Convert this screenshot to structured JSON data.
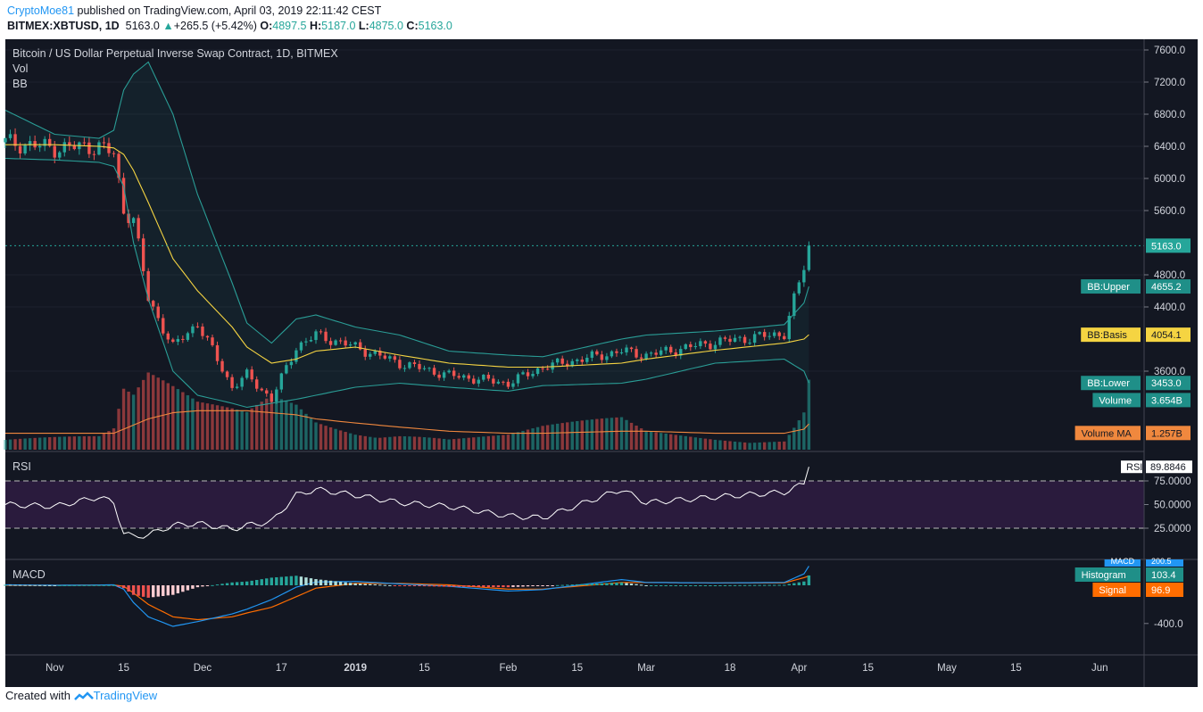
{
  "header": {
    "author": "CryptoMoe81",
    "published_text": "published on TradingView.com, April 03, 2019 22:11:42 CEST",
    "symbol": "BITMEX:XBTUSD, 1D",
    "last": "5163.0",
    "change": "+265.5 (+5.42%)",
    "o_label": "O:",
    "o": "4897.5",
    "h_label": "H:",
    "h": "5187.0",
    "l_label": "L:",
    "l": "4875.0",
    "c_label": "C:",
    "c": "5163.0"
  },
  "legend": {
    "title": "Bitcoin / US Dollar Perpetual Inverse Swap Contract, 1D, BITMEX",
    "vol": "Vol",
    "bb": "BB",
    "rsi": "RSI",
    "macd": "MACD"
  },
  "colors": {
    "background": "#131722",
    "up": "#26a69a",
    "down": "#ef5350",
    "bb_band": "#2a9d96",
    "bb_basis": "#f5d442",
    "volume_ma": "#f0883e",
    "rsi_line": "#ffffff",
    "rsi_zone": "#2a1b3d",
    "macd_line": "#2196f3",
    "signal_line": "#ff6d00"
  },
  "price_axis": {
    "ticks": [
      "7600.0",
      "7200.0",
      "6800.0",
      "6400.0",
      "6000.0",
      "5600.0",
      "4800.0",
      "4400.0",
      "3600.0"
    ],
    "badges": [
      {
        "label": "",
        "value": "5163.0",
        "price": 5163
      },
      {
        "label": "BB:Upper",
        "value": "4655.2",
        "price": 4655
      },
      {
        "label": "BB:Basis",
        "value": "4054.1",
        "price": 4054
      },
      {
        "label": "BB:Lower",
        "value": "3453.0",
        "price": 3453
      },
      {
        "label": "Volume",
        "value": "3.654B",
        "price": 3240
      },
      {
        "label": "Volume MA",
        "value": "1.257B",
        "price": 2830
      }
    ]
  },
  "rsi_axis": {
    "ticks": [
      "75.0000",
      "50.0000",
      "25.0000"
    ],
    "badge_label": "RSI",
    "badge_value": "89.8846"
  },
  "macd_axis": {
    "ticks": [
      "-400.0"
    ],
    "badges": [
      {
        "label": "MACD",
        "value": "200.5"
      },
      {
        "label": "Histogram",
        "value": "103.4"
      },
      {
        "label": "Signal",
        "value": "96.9"
      }
    ]
  },
  "time_axis": [
    "Nov",
    "15",
    "Dec",
    "17",
    "2019",
    "15",
    "Feb",
    "15",
    "Mar",
    "18",
    "Apr",
    "15",
    "May",
    "15",
    "Jun"
  ],
  "footer": {
    "prefix": "Created with",
    "brand": "TradingView"
  },
  "chart_data": {
    "type": "candlestick",
    "title": "Bitcoin / US Dollar Perpetual Inverse Swap Contract, 1D, BITMEX",
    "interval": "1D",
    "price_range": [
      3150,
      7700
    ],
    "x": [
      "2018-10-22",
      "2018-11-01",
      "2018-11-10",
      "2018-11-13",
      "2018-11-15",
      "2018-11-17",
      "2018-11-20",
      "2018-11-25",
      "2018-11-30",
      "2018-12-07",
      "2018-12-10",
      "2018-12-15",
      "2018-12-20",
      "2018-12-24",
      "2019-01-01",
      "2019-01-10",
      "2019-01-20",
      "2019-02-01",
      "2019-02-08",
      "2019-02-24",
      "2019-03-01",
      "2019-03-15",
      "2019-03-29",
      "2019-04-02",
      "2019-04-03"
    ],
    "close": [
      6450,
      6380,
      6400,
      6300,
      5600,
      5500,
      4500,
      3900,
      4200,
      3400,
      3550,
      3250,
      3900,
      4050,
      3900,
      3700,
      3550,
      3450,
      3650,
      3850,
      3800,
      3960,
      4070,
      4900,
      5163
    ],
    "bb_upper": [
      6850,
      6550,
      6500,
      6600,
      7100,
      7300,
      7450,
      6800,
      5800,
      4700,
      4200,
      3950,
      4250,
      4300,
      4150,
      4050,
      3850,
      3800,
      3780,
      4000,
      4050,
      4100,
      4180,
      4450,
      4655
    ],
    "bb_basis": [
      6420,
      6420,
      6400,
      6380,
      6300,
      6100,
      5700,
      5000,
      4600,
      4150,
      3900,
      3700,
      3750,
      3850,
      3900,
      3800,
      3700,
      3650,
      3650,
      3700,
      3750,
      3860,
      3950,
      4000,
      4054
    ],
    "bb_lower": [
      6250,
      6230,
      6200,
      6150,
      5900,
      5200,
      4500,
      3600,
      3300,
      3200,
      3150,
      3200,
      3250,
      3300,
      3400,
      3450,
      3400,
      3350,
      3420,
      3450,
      3500,
      3700,
      3750,
      3600,
      3453
    ],
    "rsi": [
      50,
      48,
      58,
      52,
      20,
      16,
      18,
      28,
      30,
      24,
      28,
      32,
      60,
      66,
      60,
      52,
      48,
      38,
      36,
      66,
      52,
      58,
      63,
      72,
      89.8846
    ],
    "macd": [
      5,
      0,
      3,
      5,
      -40,
      -180,
      -330,
      -430,
      -380,
      -300,
      -250,
      -150,
      -20,
      35,
      40,
      15,
      -10,
      -60,
      -45,
      60,
      30,
      25,
      30,
      120,
      200.5
    ],
    "signal": [
      0,
      0,
      1,
      3,
      -10,
      -80,
      -200,
      -330,
      -360,
      -330,
      -290,
      -230,
      -120,
      -30,
      20,
      20,
      5,
      -40,
      -40,
      30,
      30,
      25,
      25,
      80,
      96.9
    ],
    "histogram": [
      5,
      0,
      2,
      2,
      -30,
      -100,
      -130,
      -100,
      -20,
      30,
      40,
      80,
      100,
      65,
      20,
      -5,
      -15,
      -20,
      -5,
      30,
      0,
      0,
      5,
      40,
      103.4
    ],
    "volume_b": [
      0.8,
      0.7,
      0.6,
      0.9,
      2.5,
      2.2,
      3.0,
      2.4,
      1.8,
      1.6,
      1.5,
      2.3,
      2.1,
      1.4,
      1.0,
      0.9,
      0.5,
      0.6,
      0.9,
      1.3,
      0.8,
      0.6,
      0.5,
      2.0,
      3.654
    ],
    "volume_ma_b": [
      0.8,
      0.8,
      0.8,
      0.8,
      1.0,
      1.2,
      1.5,
      1.8,
      1.9,
      1.9,
      1.9,
      1.8,
      1.7,
      1.5,
      1.3,
      1.1,
      0.9,
      0.8,
      0.8,
      0.9,
      0.9,
      0.8,
      0.8,
      1.0,
      1.257
    ]
  }
}
